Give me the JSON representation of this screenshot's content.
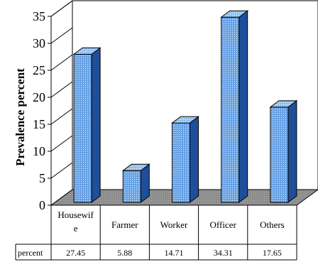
{
  "chart_data": {
    "type": "bar",
    "title": "",
    "xlabel": "",
    "ylabel": "Prevalence percent",
    "ylim": [
      0,
      35
    ],
    "yticks": [
      0,
      5,
      10,
      15,
      20,
      25,
      30,
      35
    ],
    "categories": [
      "Housewife",
      "Farmer",
      "Worker",
      "Officer",
      "Others"
    ],
    "category_labels": [
      [
        "Housewif",
        "e"
      ],
      [
        "Farmer"
      ],
      [
        "Worker"
      ],
      [
        "Officer"
      ],
      [
        "Others"
      ]
    ],
    "series": [
      {
        "name": "percent",
        "values": [
          27.45,
          5.88,
          14.71,
          34.31,
          17.65
        ]
      }
    ],
    "data_table": {
      "row_label": "percent",
      "values": [
        "27.45",
        "5.88",
        "14.71",
        "34.31",
        "17.65"
      ]
    },
    "style": "3d-column",
    "grid": false,
    "colors": {
      "bar_front": "#6fa8e8",
      "bar_side": "#1f4f9a",
      "bar_top": "#9cc8f2",
      "floor": "#8c8c8c",
      "axis": "#000000"
    }
  }
}
